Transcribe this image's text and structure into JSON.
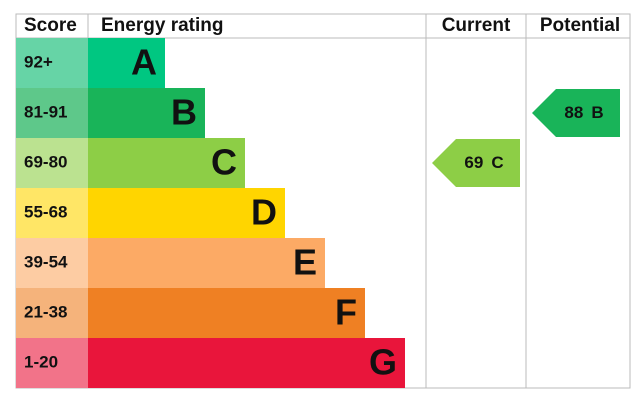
{
  "header": {
    "score": "Score",
    "energy_rating": "Energy rating",
    "current": "Current",
    "potential": "Potential"
  },
  "bands": [
    {
      "score": "92+",
      "letter": "A",
      "color": "#00c781",
      "light": "#66d4a6"
    },
    {
      "score": "81-91",
      "letter": "B",
      "color": "#19b459",
      "light": "#5ec88a"
    },
    {
      "score": "69-80",
      "letter": "C",
      "color": "#8dce46",
      "light": "#bbe290"
    },
    {
      "score": "55-68",
      "letter": "D",
      "color": "#ffd500",
      "light": "#ffe666"
    },
    {
      "score": "39-54",
      "letter": "E",
      "color": "#fcaa65",
      "light": "#fdcca3"
    },
    {
      "score": "21-38",
      "letter": "F",
      "color": "#ef8023",
      "light": "#f5b37b"
    },
    {
      "score": "1-20",
      "letter": "G",
      "color": "#e9153b",
      "light": "#f27389"
    }
  ],
  "current": {
    "value": 69,
    "letter": "C"
  },
  "potential": {
    "value": 88,
    "letter": "B"
  }
}
